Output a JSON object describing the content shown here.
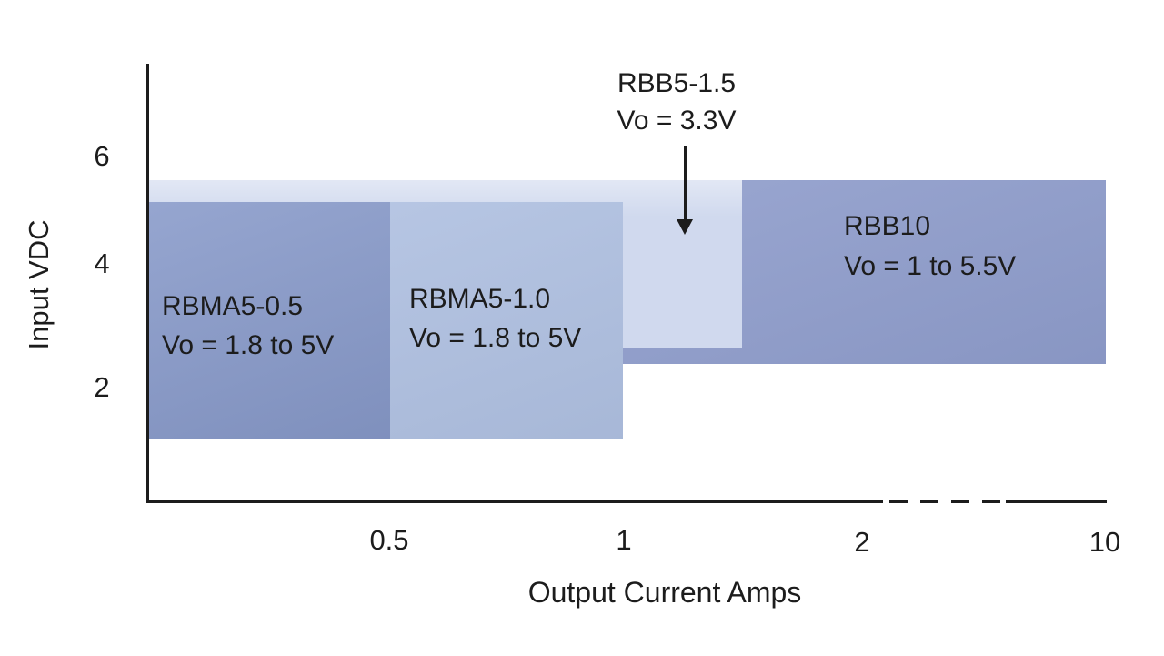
{
  "figure": {
    "kind": "product-operating-range chart",
    "x_axis_break": "dashed axis segment between 2 and 10 amps"
  },
  "axes": {
    "x_label": "Output Current Amps",
    "y_label": "Input VDC",
    "x_ticks": [
      "0.5",
      "1",
      "2",
      "10"
    ],
    "y_ticks": [
      "6",
      "4",
      "2"
    ]
  },
  "annotation": {
    "line1": "RBB5-1.5",
    "line2": "Vo = 3.3V",
    "arrow": "down-arrow pointing into RBB5-1.5 region"
  },
  "colors": {
    "ink": "#1c1c1c",
    "rbma5_05": "#8799c9",
    "rbma5_10": "#aebfe0",
    "rbb5_15": "#d0d9ee",
    "rbb10": "#8e9ccb",
    "background": "#ffffff"
  },
  "chart_data": {
    "type": "area",
    "title": "",
    "xlabel": "Output Current Amps",
    "ylabel": "Input VDC",
    "x_ticks": [
      0.5,
      1,
      2,
      10
    ],
    "y_ticks": [
      2,
      4,
      6
    ],
    "x_axis_note": "non-linear schematic axis with a dashed break between 2 A and 10 A",
    "grid": false,
    "legend": "labels drawn inside regions",
    "regions": [
      {
        "name": "RBMA5-0.5",
        "output_voltage": "Vo = 1.8 to 5V",
        "output_current_amps": [
          0,
          0.5
        ],
        "input_vdc": [
          1.2,
          5.2
        ]
      },
      {
        "name": "RBMA5-1.0",
        "output_voltage": "Vo = 1.8 to 5V",
        "output_current_amps": [
          0.5,
          1.0
        ],
        "input_vdc": [
          1.2,
          5.2
        ]
      },
      {
        "name": "RBB5-1.5",
        "output_voltage": "Vo = 3.3V",
        "output_current_amps": [
          0,
          1.5
        ],
        "input_vdc": [
          2.6,
          5.5
        ]
      },
      {
        "name": "RBB10",
        "output_voltage": "Vo = 1 to 5.5V",
        "output_current_amps": [
          1.0,
          10
        ],
        "input_vdc": [
          2.4,
          5.5
        ]
      }
    ]
  }
}
